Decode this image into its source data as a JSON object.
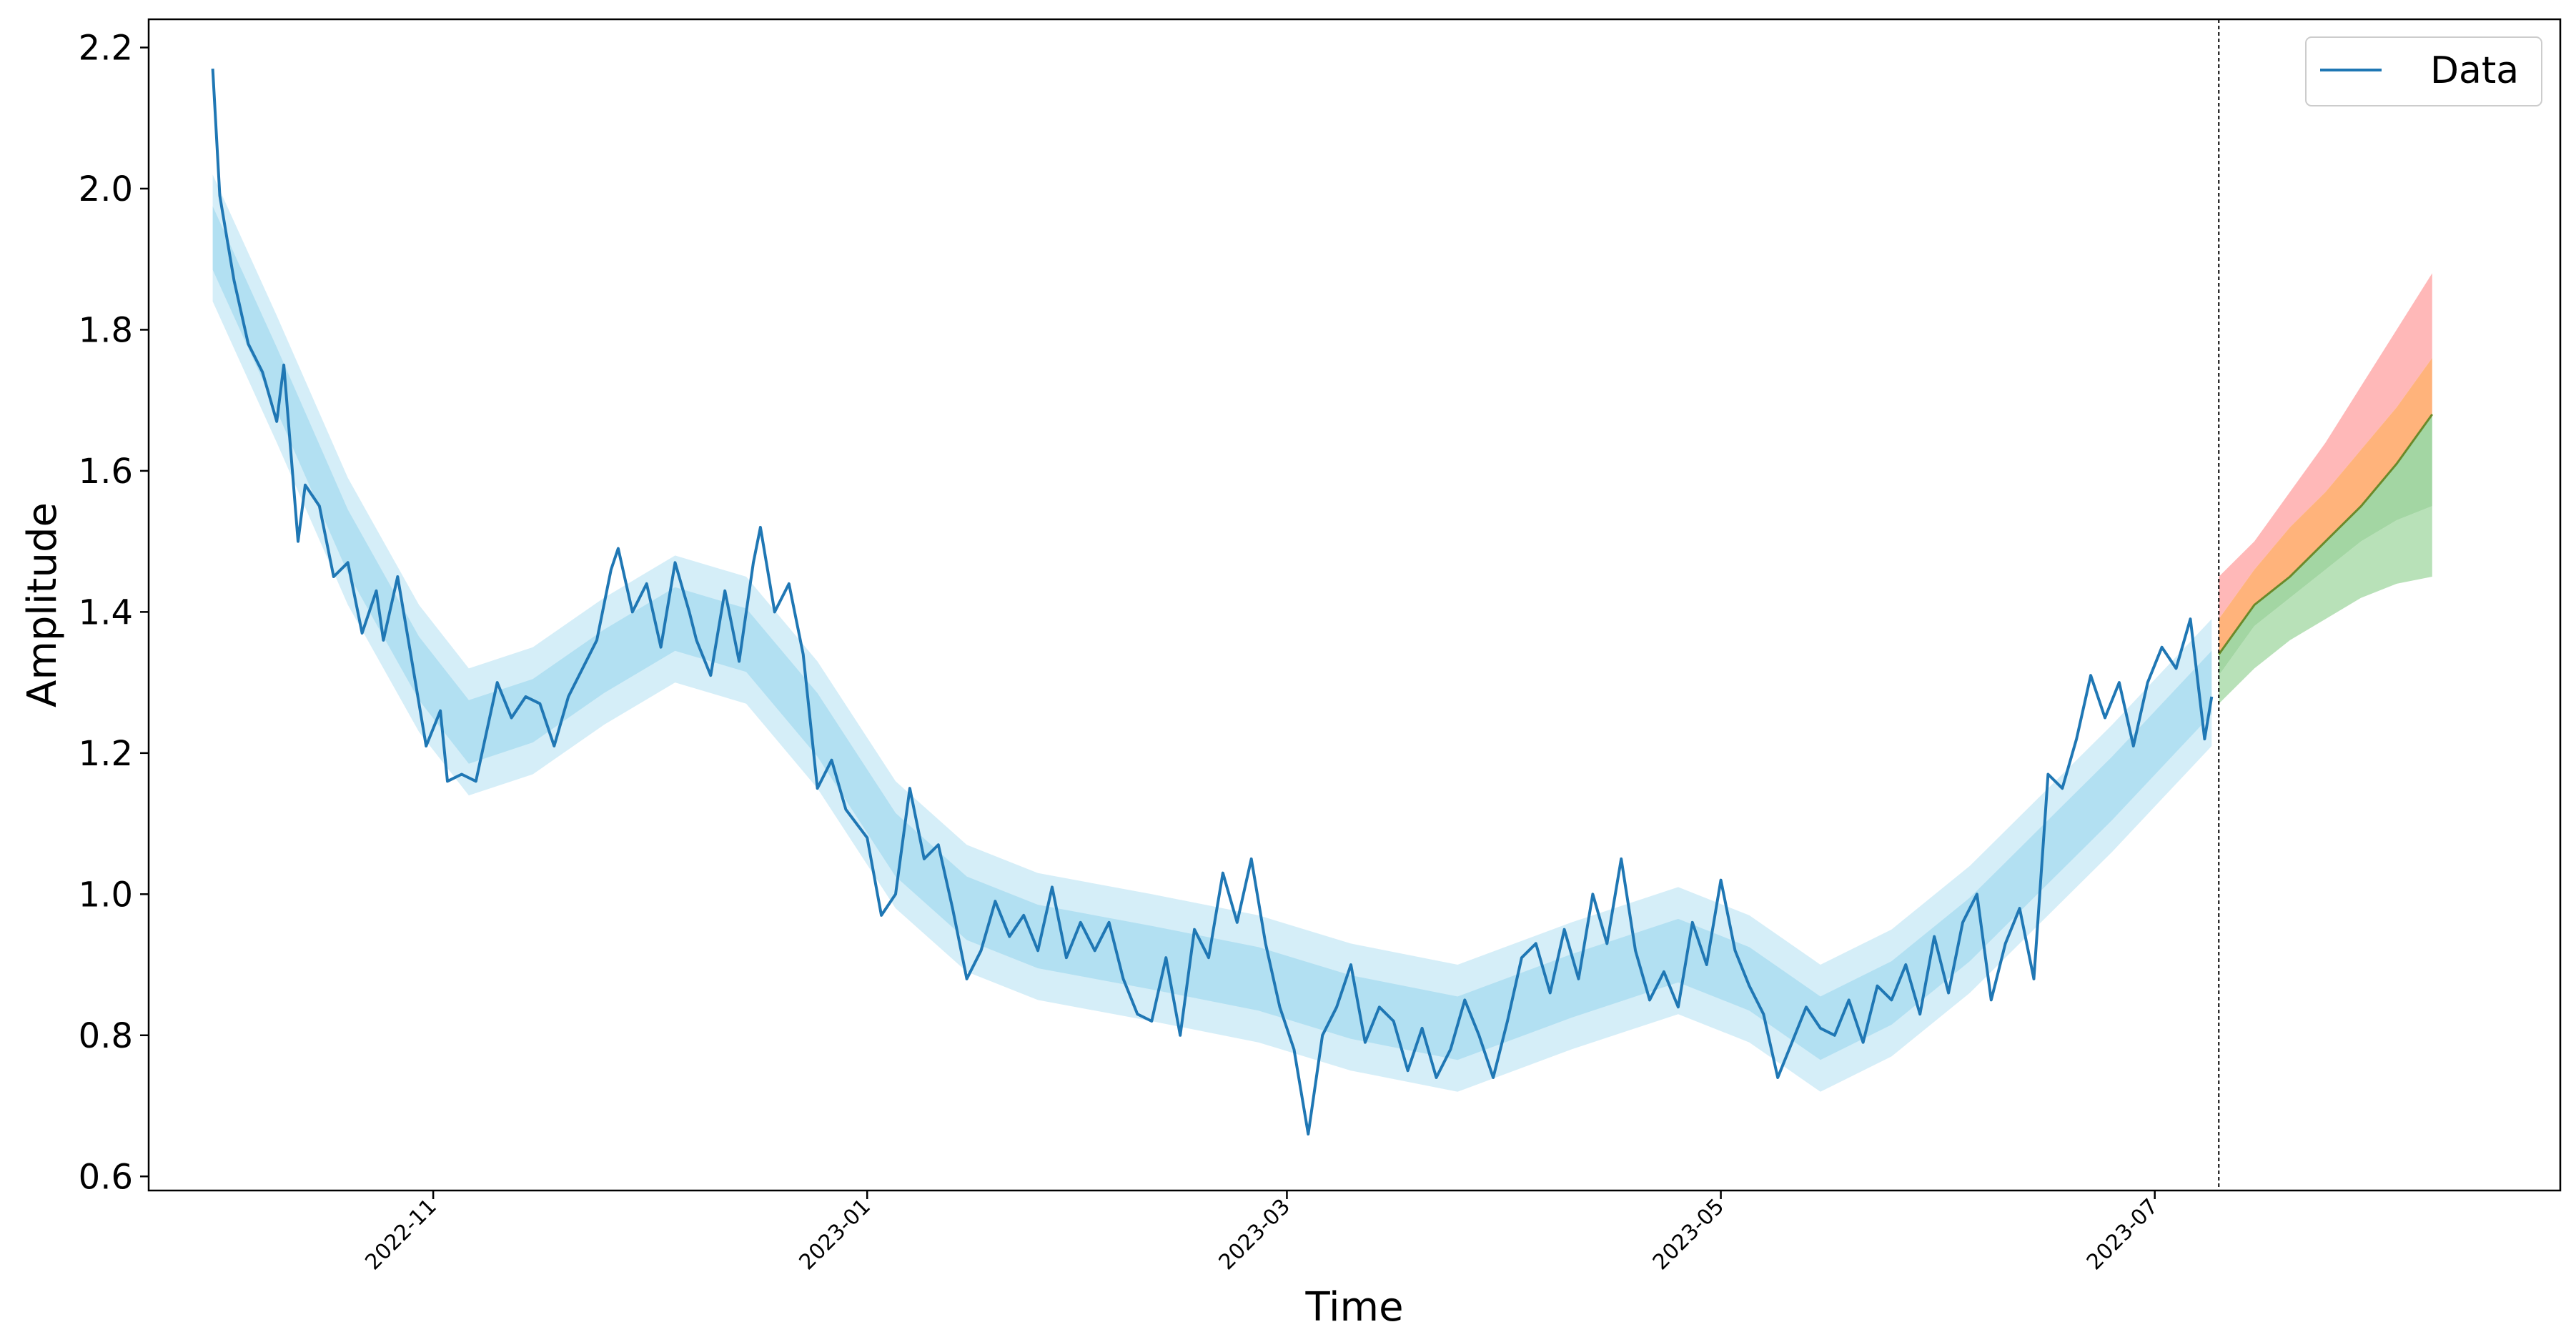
{
  "chart_data": {
    "type": "line",
    "title": "",
    "xlabel": "Time",
    "ylabel": "Amplitude",
    "ylim": [
      0.58,
      2.24
    ],
    "xlim": [
      "2022-09-22",
      "2023-08-27"
    ],
    "yticks": [
      0.6,
      0.8,
      1.0,
      1.2,
      1.4,
      1.6,
      1.8,
      2.0,
      2.2
    ],
    "xticks": [
      "2022-11",
      "2023-01",
      "2023-03",
      "2023-05",
      "2023-07"
    ],
    "grid": false,
    "legend": {
      "position": "top-right",
      "entries": [
        "Data"
      ]
    },
    "forecast_start": "2023-07-10",
    "series": [
      {
        "name": "Data",
        "color": "#1f77b4",
        "points": [
          [
            "2022-10-01",
            2.17
          ],
          [
            "2022-10-02",
            1.99
          ],
          [
            "2022-10-04",
            1.87
          ],
          [
            "2022-10-06",
            1.78
          ],
          [
            "2022-10-08",
            1.74
          ],
          [
            "2022-10-10",
            1.67
          ],
          [
            "2022-10-11",
            1.75
          ],
          [
            "2022-10-13",
            1.5
          ],
          [
            "2022-10-14",
            1.58
          ],
          [
            "2022-10-16",
            1.55
          ],
          [
            "2022-10-18",
            1.45
          ],
          [
            "2022-10-20",
            1.47
          ],
          [
            "2022-10-22",
            1.37
          ],
          [
            "2022-10-24",
            1.43
          ],
          [
            "2022-10-25",
            1.36
          ],
          [
            "2022-10-27",
            1.45
          ],
          [
            "2022-10-29",
            1.33
          ],
          [
            "2022-10-31",
            1.21
          ],
          [
            "2022-11-02",
            1.26
          ],
          [
            "2022-11-03",
            1.16
          ],
          [
            "2022-11-05",
            1.17
          ],
          [
            "2022-11-07",
            1.16
          ],
          [
            "2022-11-10",
            1.3
          ],
          [
            "2022-11-12",
            1.25
          ],
          [
            "2022-11-14",
            1.28
          ],
          [
            "2022-11-16",
            1.27
          ],
          [
            "2022-11-18",
            1.21
          ],
          [
            "2022-11-20",
            1.28
          ],
          [
            "2022-11-22",
            1.32
          ],
          [
            "2022-11-24",
            1.36
          ],
          [
            "2022-11-26",
            1.46
          ],
          [
            "2022-11-27",
            1.49
          ],
          [
            "2022-11-29",
            1.4
          ],
          [
            "2022-12-01",
            1.44
          ],
          [
            "2022-12-03",
            1.35
          ],
          [
            "2022-12-05",
            1.47
          ],
          [
            "2022-12-07",
            1.4
          ],
          [
            "2022-12-08",
            1.36
          ],
          [
            "2022-12-10",
            1.31
          ],
          [
            "2022-12-12",
            1.43
          ],
          [
            "2022-12-14",
            1.33
          ],
          [
            "2022-12-16",
            1.47
          ],
          [
            "2022-12-17",
            1.52
          ],
          [
            "2022-12-19",
            1.4
          ],
          [
            "2022-12-21",
            1.44
          ],
          [
            "2022-12-23",
            1.34
          ],
          [
            "2022-12-25",
            1.15
          ],
          [
            "2022-12-27",
            1.19
          ],
          [
            "2022-12-29",
            1.12
          ],
          [
            "2023-01-01",
            1.08
          ],
          [
            "2023-01-03",
            0.97
          ],
          [
            "2023-01-05",
            1.0
          ],
          [
            "2023-01-07",
            1.15
          ],
          [
            "2023-01-09",
            1.05
          ],
          [
            "2023-01-11",
            1.07
          ],
          [
            "2023-01-13",
            0.98
          ],
          [
            "2023-01-15",
            0.88
          ],
          [
            "2023-01-17",
            0.92
          ],
          [
            "2023-01-19",
            0.99
          ],
          [
            "2023-01-21",
            0.94
          ],
          [
            "2023-01-23",
            0.97
          ],
          [
            "2023-01-25",
            0.92
          ],
          [
            "2023-01-27",
            1.01
          ],
          [
            "2023-01-29",
            0.91
          ],
          [
            "2023-01-31",
            0.96
          ],
          [
            "2023-02-02",
            0.92
          ],
          [
            "2023-02-04",
            0.96
          ],
          [
            "2023-02-06",
            0.88
          ],
          [
            "2023-02-08",
            0.83
          ],
          [
            "2023-02-10",
            0.82
          ],
          [
            "2023-02-12",
            0.91
          ],
          [
            "2023-02-14",
            0.8
          ],
          [
            "2023-02-16",
            0.95
          ],
          [
            "2023-02-18",
            0.91
          ],
          [
            "2023-02-20",
            1.03
          ],
          [
            "2023-02-22",
            0.96
          ],
          [
            "2023-02-24",
            1.05
          ],
          [
            "2023-02-26",
            0.93
          ],
          [
            "2023-02-28",
            0.84
          ],
          [
            "2023-03-02",
            0.78
          ],
          [
            "2023-03-04",
            0.66
          ],
          [
            "2023-03-06",
            0.8
          ],
          [
            "2023-03-08",
            0.84
          ],
          [
            "2023-03-10",
            0.9
          ],
          [
            "2023-03-12",
            0.79
          ],
          [
            "2023-03-14",
            0.84
          ],
          [
            "2023-03-16",
            0.82
          ],
          [
            "2023-03-18",
            0.75
          ],
          [
            "2023-03-20",
            0.81
          ],
          [
            "2023-03-22",
            0.74
          ],
          [
            "2023-03-24",
            0.78
          ],
          [
            "2023-03-26",
            0.85
          ],
          [
            "2023-03-28",
            0.8
          ],
          [
            "2023-03-30",
            0.74
          ],
          [
            "2023-04-01",
            0.82
          ],
          [
            "2023-04-03",
            0.91
          ],
          [
            "2023-04-05",
            0.93
          ],
          [
            "2023-04-07",
            0.86
          ],
          [
            "2023-04-09",
            0.95
          ],
          [
            "2023-04-11",
            0.88
          ],
          [
            "2023-04-13",
            1.0
          ],
          [
            "2023-04-15",
            0.93
          ],
          [
            "2023-04-17",
            1.05
          ],
          [
            "2023-04-19",
            0.92
          ],
          [
            "2023-04-21",
            0.85
          ],
          [
            "2023-04-23",
            0.89
          ],
          [
            "2023-04-25",
            0.84
          ],
          [
            "2023-04-27",
            0.96
          ],
          [
            "2023-04-29",
            0.9
          ],
          [
            "2023-05-01",
            1.02
          ],
          [
            "2023-05-03",
            0.92
          ],
          [
            "2023-05-05",
            0.87
          ],
          [
            "2023-05-07",
            0.83
          ],
          [
            "2023-05-09",
            0.74
          ],
          [
            "2023-05-11",
            0.79
          ],
          [
            "2023-05-13",
            0.84
          ],
          [
            "2023-05-15",
            0.81
          ],
          [
            "2023-05-17",
            0.8
          ],
          [
            "2023-05-19",
            0.85
          ],
          [
            "2023-05-21",
            0.79
          ],
          [
            "2023-05-23",
            0.87
          ],
          [
            "2023-05-25",
            0.85
          ],
          [
            "2023-05-27",
            0.9
          ],
          [
            "2023-05-29",
            0.83
          ],
          [
            "2023-05-31",
            0.94
          ],
          [
            "2023-06-02",
            0.86
          ],
          [
            "2023-06-04",
            0.96
          ],
          [
            "2023-06-06",
            1.0
          ],
          [
            "2023-06-08",
            0.85
          ],
          [
            "2023-06-10",
            0.93
          ],
          [
            "2023-06-12",
            0.98
          ],
          [
            "2023-06-14",
            0.88
          ],
          [
            "2023-06-16",
            1.17
          ],
          [
            "2023-06-18",
            1.15
          ],
          [
            "2023-06-20",
            1.22
          ],
          [
            "2023-06-22",
            1.31
          ],
          [
            "2023-06-24",
            1.25
          ],
          [
            "2023-06-26",
            1.3
          ],
          [
            "2023-06-28",
            1.21
          ],
          [
            "2023-06-30",
            1.3
          ],
          [
            "2023-07-02",
            1.35
          ],
          [
            "2023-07-04",
            1.32
          ],
          [
            "2023-07-06",
            1.39
          ],
          [
            "2023-07-08",
            1.22
          ],
          [
            "2023-07-09",
            1.28
          ]
        ]
      }
    ],
    "bands": {
      "history_color": "#87ceeb",
      "history_mean": [
        [
          "2022-10-01",
          1.93
        ],
        [
          "2022-10-10",
          1.73
        ],
        [
          "2022-10-20",
          1.5
        ],
        [
          "2022-10-30",
          1.32
        ],
        [
          "2022-11-06",
          1.23
        ],
        [
          "2022-11-15",
          1.26
        ],
        [
          "2022-11-25",
          1.33
        ],
        [
          "2022-12-05",
          1.39
        ],
        [
          "2022-12-15",
          1.36
        ],
        [
          "2022-12-25",
          1.24
        ],
        [
          "2023-01-05",
          1.07
        ],
        [
          "2023-01-15",
          0.98
        ],
        [
          "2023-01-25",
          0.94
        ],
        [
          "2023-02-10",
          0.91
        ],
        [
          "2023-02-25",
          0.88
        ],
        [
          "2023-03-10",
          0.84
        ],
        [
          "2023-03-25",
          0.81
        ],
        [
          "2023-04-10",
          0.87
        ],
        [
          "2023-04-25",
          0.92
        ],
        [
          "2023-05-05",
          0.88
        ],
        [
          "2023-05-15",
          0.81
        ],
        [
          "2023-05-25",
          0.86
        ],
        [
          "2023-06-05",
          0.95
        ],
        [
          "2023-06-15",
          1.05
        ],
        [
          "2023-06-25",
          1.15
        ],
        [
          "2023-07-09",
          1.3
        ]
      ],
      "history_inner_halfwidth": 0.045,
      "history_outer_halfwidth": 0.09,
      "forecast": {
        "dates": [
          "2023-07-10",
          "2023-07-15",
          "2023-07-20",
          "2023-07-25",
          "2023-07-30",
          "2023-08-04",
          "2023-08-09"
        ],
        "median": [
          1.34,
          1.41,
          1.45,
          1.5,
          1.55,
          1.61,
          1.68
        ],
        "lower_outer": [
          1.27,
          1.32,
          1.36,
          1.39,
          1.42,
          1.44,
          1.45
        ],
        "lower_inner": [
          1.31,
          1.38,
          1.42,
          1.46,
          1.5,
          1.53,
          1.55
        ],
        "upper_inner": [
          1.39,
          1.46,
          1.52,
          1.57,
          1.63,
          1.69,
          1.76
        ],
        "upper_outer": [
          1.45,
          1.5,
          1.57,
          1.64,
          1.72,
          1.8,
          1.88
        ],
        "colors": {
          "upper_outer": "#ff9a9a",
          "upper_inner": "#ffa05a",
          "lower_inner": "#66bb66",
          "lower_outer": "#9ad49a"
        }
      }
    }
  }
}
